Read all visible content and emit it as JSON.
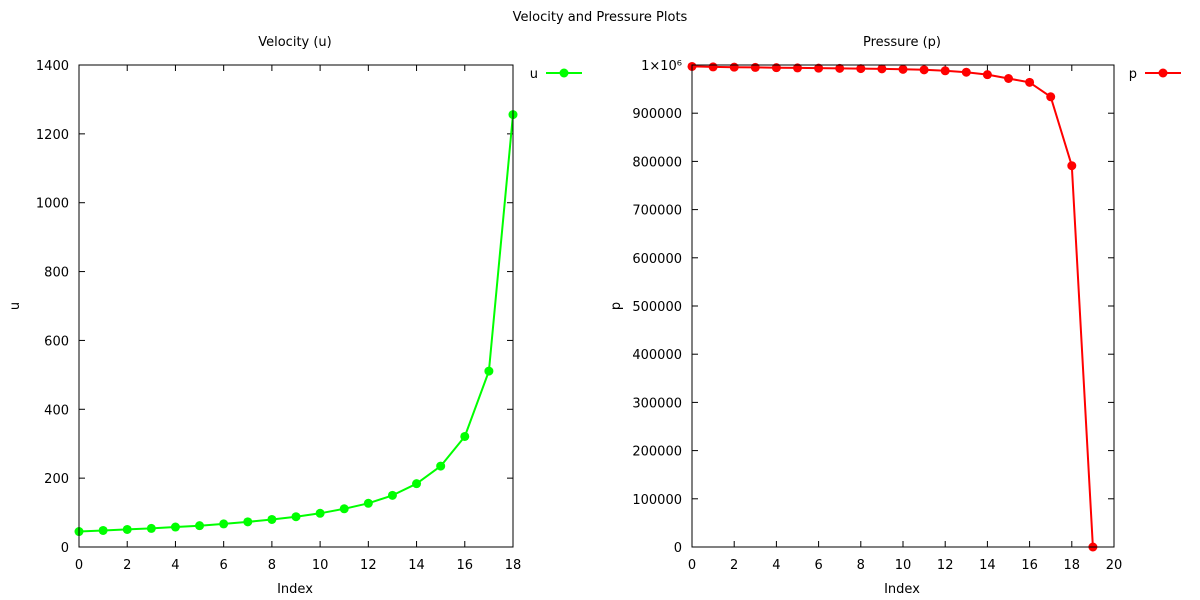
{
  "suptitle": "Velocity and Pressure Plots",
  "chart_data": [
    {
      "type": "line",
      "title": "Velocity (u)",
      "xlabel": "Index",
      "ylabel": "u",
      "xlim": [
        0,
        18
      ],
      "ylim": [
        0,
        1400
      ],
      "xticks": [
        0,
        2,
        4,
        6,
        8,
        10,
        12,
        14,
        16,
        18
      ],
      "xtick_labels": [
        "0",
        "2",
        "4",
        "6",
        "8",
        "10",
        "12",
        "14",
        "16",
        "18"
      ],
      "yticks": [
        0,
        200,
        400,
        600,
        800,
        1000,
        1200,
        1400
      ],
      "ytick_labels": [
        "0",
        "200",
        "400",
        "600",
        "800",
        "1000",
        "1200",
        "1400"
      ],
      "legend_position": "outside-top-right",
      "grid": false,
      "series": [
        {
          "name": "u",
          "color": "#00ff00",
          "marker": "circle",
          "x": [
            0,
            1,
            2,
            3,
            4,
            5,
            6,
            7,
            8,
            9,
            10,
            11,
            12,
            13,
            14,
            15,
            16,
            17,
            18
          ],
          "y": [
            45,
            48,
            51,
            54,
            58,
            62,
            67,
            73,
            80,
            88,
            98,
            111,
            127,
            150,
            184,
            235,
            321,
            511,
            1256
          ]
        }
      ]
    },
    {
      "type": "line",
      "title": "Pressure (p)",
      "xlabel": "Index",
      "ylabel": "p",
      "xlim": [
        0,
        20
      ],
      "ylim": [
        0,
        1000000
      ],
      "xticks": [
        0,
        2,
        4,
        6,
        8,
        10,
        12,
        14,
        16,
        18,
        20
      ],
      "xtick_labels": [
        "0",
        "2",
        "4",
        "6",
        "8",
        "10",
        "12",
        "14",
        "16",
        "18",
        "20"
      ],
      "yticks": [
        0,
        100000,
        200000,
        300000,
        400000,
        500000,
        600000,
        700000,
        800000,
        900000,
        1000000
      ],
      "ytick_labels": [
        "0",
        "100000",
        "200000",
        "300000",
        "400000",
        "500000",
        "600000",
        "700000",
        "800000",
        "900000",
        "1×10⁶"
      ],
      "legend_position": "outside-top-right",
      "grid": false,
      "series": [
        {
          "name": "p",
          "color": "#ff0000",
          "marker": "circle",
          "x": [
            0,
            1,
            2,
            3,
            4,
            5,
            6,
            7,
            8,
            9,
            10,
            11,
            12,
            13,
            14,
            15,
            16,
            17,
            18,
            19
          ],
          "y": [
            997000,
            996000,
            995500,
            995000,
            994500,
            994000,
            993500,
            993000,
            992500,
            992000,
            991000,
            990000,
            988000,
            985000,
            980000,
            972000,
            964000,
            934000,
            791000,
            0
          ]
        }
      ]
    }
  ]
}
